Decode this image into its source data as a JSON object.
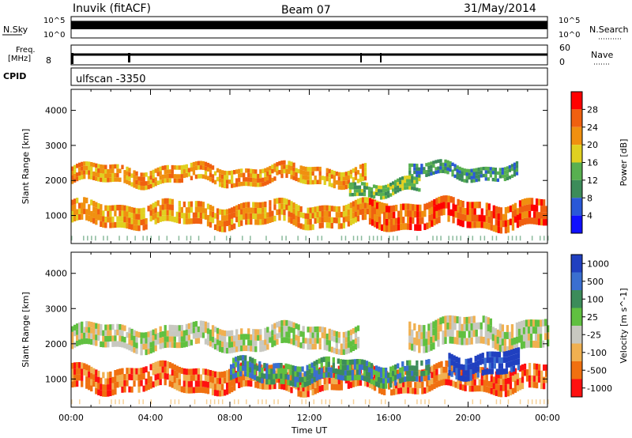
{
  "header": {
    "station": "Inuvik (fitACF)",
    "beam": "Beam 07",
    "date": "31/May/2014"
  },
  "top_panels": {
    "nsky": {
      "label": "N.Sky",
      "ticks": [
        "10^5",
        "10^0"
      ],
      "right_label": "N.Search",
      "right_ticks": [
        "10^5",
        "10^0"
      ]
    },
    "freq": {
      "label_line1": "Freq.",
      "label_line2": "[MHz]",
      "ticks": [
        "8"
      ],
      "right_label": "Nave",
      "right_ticks": [
        "60",
        "0"
      ]
    },
    "cpid": {
      "label": "CPID",
      "value": "ulfscan -3350"
    }
  },
  "chart_data": [
    {
      "type": "heatmap",
      "name": "power-panel",
      "ylabel": "Slant Range [km]",
      "xlabel": "",
      "ylim": [
        200,
        4600
      ],
      "yticks": [
        1000,
        2000,
        3000,
        4000
      ],
      "xlim": [
        0,
        24
      ],
      "colorbar": {
        "label": "Power [dB]",
        "ticks": [
          "4",
          "8",
          "12",
          "16",
          "20",
          "24",
          "28"
        ],
        "colors": [
          "#1010ff",
          "#2a58d8",
          "#3c8c5a",
          "#58b050",
          "#e0d020",
          "#f09010",
          "#f06010",
          "#ff0000"
        ]
      },
      "bands": [
        {
          "t0": 0.0,
          "t1": 14.8,
          "r0": 1900,
          "r1": 2400,
          "level": 5
        },
        {
          "t0": 0.0,
          "t1": 16.0,
          "r0": 700,
          "r1": 1350,
          "level": 5
        },
        {
          "t0": 15.0,
          "t1": 24.0,
          "r0": 650,
          "r1": 1400,
          "level": 6
        },
        {
          "t0": 17.0,
          "t1": 22.5,
          "r0": 2050,
          "r1": 2450,
          "level": 2
        },
        {
          "t0": 14.0,
          "t1": 17.5,
          "r0": 1600,
          "r1": 2000,
          "level": 3
        }
      ]
    },
    {
      "type": "heatmap",
      "name": "velocity-panel",
      "ylabel": "Slant Range [km]",
      "xlabel": "Time UT",
      "ylim": [
        200,
        4600
      ],
      "yticks": [
        1000,
        2000,
        3000,
        4000
      ],
      "xlim": [
        0,
        24
      ],
      "xticks": [
        "00:00",
        "04:00",
        "08:00",
        "12:00",
        "16:00",
        "20:00",
        "00:00"
      ],
      "colorbar": {
        "label": "Velocity [m s^-1]",
        "ticks": [
          "1000",
          "500",
          "100",
          "25",
          "-25",
          "-100",
          "-500",
          "-1000"
        ],
        "colors": [
          "#2040c0",
          "#3a6fd0",
          "#3c8c5a",
          "#60c040",
          "#c8c8c0",
          "#f0b050",
          "#f07010",
          "#ff1010"
        ]
      },
      "bands": [
        {
          "t0": 0.0,
          "t1": 14.5,
          "r0": 1850,
          "r1": 2500,
          "level": 4
        },
        {
          "t0": 17.0,
          "t1": 24.0,
          "r0": 1900,
          "r1": 2700,
          "level": 4
        },
        {
          "t0": 0.0,
          "t1": 24.0,
          "r0": 650,
          "r1": 1350,
          "level": 6
        },
        {
          "t0": 8.0,
          "t1": 18.0,
          "r0": 900,
          "r1": 1500,
          "level": 2
        },
        {
          "t0": 19.0,
          "t1": 22.5,
          "r0": 1100,
          "r1": 1750,
          "level": 0
        }
      ]
    }
  ]
}
